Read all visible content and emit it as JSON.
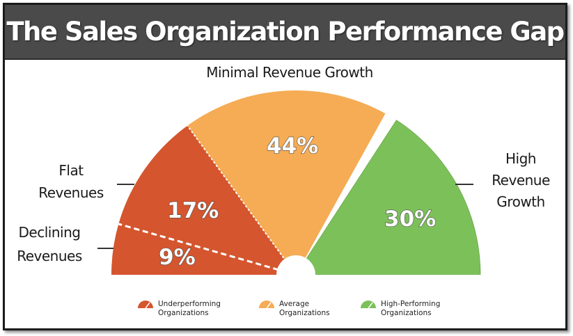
{
  "title": "The Sales Organization Performance Gap",
  "chart_data": {
    "type": "gauge",
    "segments": [
      {
        "label": "Declining Revenues",
        "value": 9,
        "value_label": "9%",
        "group": "Underperforming Organizations"
      },
      {
        "label": "Flat Revenues",
        "value": 17,
        "value_label": "17%",
        "group": "Underperforming Organizations"
      },
      {
        "label": "Minimal Revenue Growth",
        "value": 44,
        "value_label": "44%",
        "group": "Average Organizations"
      },
      {
        "label": "High Revenue Growth",
        "value": 30,
        "value_label": "30%",
        "group": "High-Performing Organizations"
      }
    ],
    "legend": [
      {
        "line1": "Underperforming",
        "line2": "Organizations",
        "color": "#d4552e"
      },
      {
        "line1": "Average",
        "line2": "Organizations",
        "color": "#f5ac55"
      },
      {
        "line1": "High-Performing",
        "line2": "Organizations",
        "color": "#7cc05a"
      }
    ],
    "colors": {
      "underperforming": "#d4552e",
      "average": "#f5ac55",
      "high": "#7cc05a"
    }
  }
}
